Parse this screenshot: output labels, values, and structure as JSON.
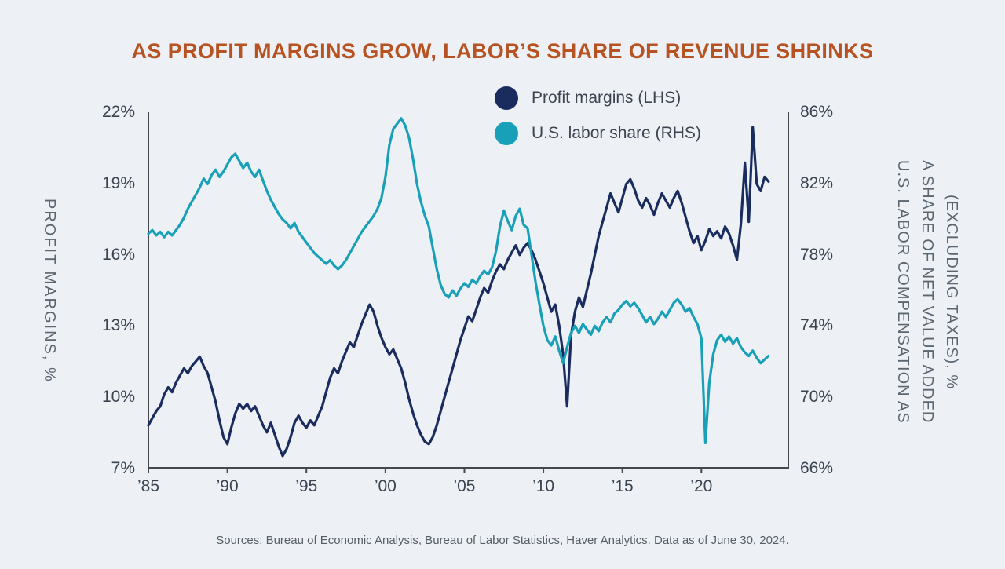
{
  "title": "AS PROFIT MARGINS GROW, LABOR’S SHARE OF REVENUE SHRINKS",
  "source_note": "Sources: Bureau of Economic Analysis, Bureau of Labor Statistics, Haver Analytics. Data as of June 30, 2024.",
  "colors": {
    "background": "#edf1f6",
    "title": "#b75322",
    "profit_margins": "#1a2c5e",
    "labor_share": "#17a0b7",
    "axis": "#45494e",
    "tick_text": "#3a4450",
    "axis_label_text": "#5c6671"
  },
  "legend": [
    {
      "label": "Profit margins (LHS)",
      "color": "#1a2c5e"
    },
    {
      "label": "U.S. labor share (RHS)",
      "color": "#17a0b7"
    }
  ],
  "chart_data": {
    "type": "line",
    "title": "AS PROFIT MARGINS GROW, LABOR’S SHARE OF REVENUE SHRINKS",
    "grid": false,
    "legend_position": "top-center",
    "x_start_year": 1985,
    "x_step_years": 0.25,
    "x_range": [
      1985,
      2025.5
    ],
    "x_ticks": {
      "years": [
        1985,
        1990,
        1995,
        2000,
        2005,
        2010,
        2015,
        2020
      ],
      "labels": [
        "’85",
        "’90",
        "’95",
        "’00",
        "’05",
        "’10",
        "’15",
        "’20"
      ]
    },
    "left_axis": {
      "label": "PROFIT MARGINS, %",
      "range": [
        7,
        22
      ],
      "tick_values": [
        22,
        19,
        16,
        13,
        10,
        7
      ],
      "tick_labels": [
        "22%",
        "19%",
        "16%",
        "13%",
        "10%",
        "7%"
      ]
    },
    "right_axis": {
      "label_lines": [
        "U.S. LABOR COMPENSATION AS",
        "A SHARE OF NET VALUE ADDED",
        "(EXCLUDING TAXES), %"
      ],
      "range": [
        66,
        86
      ],
      "tick_values": [
        86,
        82,
        78,
        74,
        70,
        66
      ],
      "tick_labels": [
        "86%",
        "82%",
        "78%",
        "74%",
        "70%",
        "66%"
      ]
    },
    "series": [
      {
        "name": "Profit margins (LHS)",
        "axis": "left",
        "color": "#1a2c5e",
        "values": [
          8.8,
          9.1,
          9.4,
          9.6,
          10.1,
          10.4,
          10.2,
          10.6,
          10.9,
          11.2,
          11.0,
          11.3,
          11.5,
          11.7,
          11.3,
          11.0,
          10.4,
          9.8,
          9.0,
          8.3,
          8.0,
          8.7,
          9.3,
          9.7,
          9.5,
          9.7,
          9.4,
          9.6,
          9.2,
          8.8,
          8.5,
          8.9,
          8.4,
          7.9,
          7.5,
          7.8,
          8.3,
          8.9,
          9.2,
          8.9,
          8.7,
          9.0,
          8.8,
          9.2,
          9.6,
          10.2,
          10.8,
          11.2,
          11.0,
          11.5,
          11.9,
          12.3,
          12.1,
          12.6,
          13.1,
          13.5,
          13.9,
          13.6,
          13.0,
          12.5,
          12.1,
          11.8,
          12.0,
          11.6,
          11.2,
          10.6,
          9.9,
          9.3,
          8.8,
          8.4,
          8.1,
          8.0,
          8.3,
          8.8,
          9.4,
          10.0,
          10.6,
          11.2,
          11.8,
          12.4,
          12.9,
          13.4,
          13.2,
          13.7,
          14.2,
          14.6,
          14.4,
          14.9,
          15.3,
          15.6,
          15.4,
          15.8,
          16.1,
          16.4,
          16.0,
          16.3,
          16.5,
          16.2,
          15.8,
          15.3,
          14.8,
          14.2,
          13.6,
          13.9,
          13.0,
          11.8,
          9.6,
          12.6,
          13.6,
          14.2,
          13.8,
          14.5,
          15.2,
          16.0,
          16.8,
          17.4,
          18.0,
          18.6,
          18.2,
          17.8,
          18.4,
          19.0,
          19.2,
          18.8,
          18.3,
          18.0,
          18.4,
          18.1,
          17.7,
          18.2,
          18.6,
          18.3,
          18.0,
          18.4,
          18.7,
          18.2,
          17.6,
          17.0,
          16.5,
          16.8,
          16.2,
          16.6,
          17.1,
          16.8,
          17.0,
          16.7,
          17.2,
          16.9,
          16.4,
          15.8,
          17.3,
          19.9,
          17.4,
          21.4,
          19.0,
          18.7,
          19.3,
          19.1
        ]
      },
      {
        "name": "U.S. labor share (RHS)",
        "axis": "right",
        "color": "#17a0b7",
        "values": [
          79.2,
          79.4,
          79.1,
          79.3,
          79.0,
          79.3,
          79.1,
          79.4,
          79.7,
          80.1,
          80.6,
          81.0,
          81.4,
          81.8,
          82.3,
          82.0,
          82.5,
          82.8,
          82.4,
          82.7,
          83.1,
          83.5,
          83.7,
          83.3,
          82.9,
          83.2,
          82.7,
          82.4,
          82.8,
          82.2,
          81.6,
          81.1,
          80.7,
          80.3,
          80.0,
          79.8,
          79.5,
          79.8,
          79.3,
          79.0,
          78.7,
          78.4,
          78.1,
          77.9,
          77.7,
          77.5,
          77.7,
          77.4,
          77.2,
          77.4,
          77.7,
          78.1,
          78.5,
          78.9,
          79.3,
          79.6,
          79.9,
          80.2,
          80.6,
          81.2,
          82.4,
          84.2,
          85.1,
          85.4,
          85.7,
          85.3,
          84.6,
          83.4,
          82.0,
          81.0,
          80.2,
          79.6,
          78.4,
          77.2,
          76.3,
          75.8,
          75.6,
          76.0,
          75.7,
          76.1,
          76.4,
          76.2,
          76.6,
          76.4,
          76.8,
          77.1,
          76.9,
          77.3,
          78.2,
          79.6,
          80.5,
          79.9,
          79.4,
          80.2,
          80.6,
          79.7,
          79.5,
          78.0,
          76.5,
          75.2,
          74.0,
          73.2,
          72.9,
          73.4,
          72.6,
          71.9,
          72.8,
          73.6,
          74.0,
          73.6,
          74.1,
          73.8,
          73.5,
          74.0,
          73.7,
          74.2,
          74.5,
          74.2,
          74.7,
          74.9,
          75.2,
          75.4,
          75.1,
          75.3,
          75.0,
          74.6,
          74.2,
          74.5,
          74.1,
          74.4,
          74.8,
          74.5,
          74.9,
          75.3,
          75.5,
          75.2,
          74.8,
          75.0,
          74.5,
          74.1,
          73.3,
          67.4,
          70.8,
          72.4,
          73.2,
          73.5,
          73.1,
          73.4,
          73.0,
          73.3,
          72.8,
          72.5,
          72.3,
          72.6,
          72.2,
          71.9,
          72.1,
          72.3
        ]
      }
    ]
  }
}
